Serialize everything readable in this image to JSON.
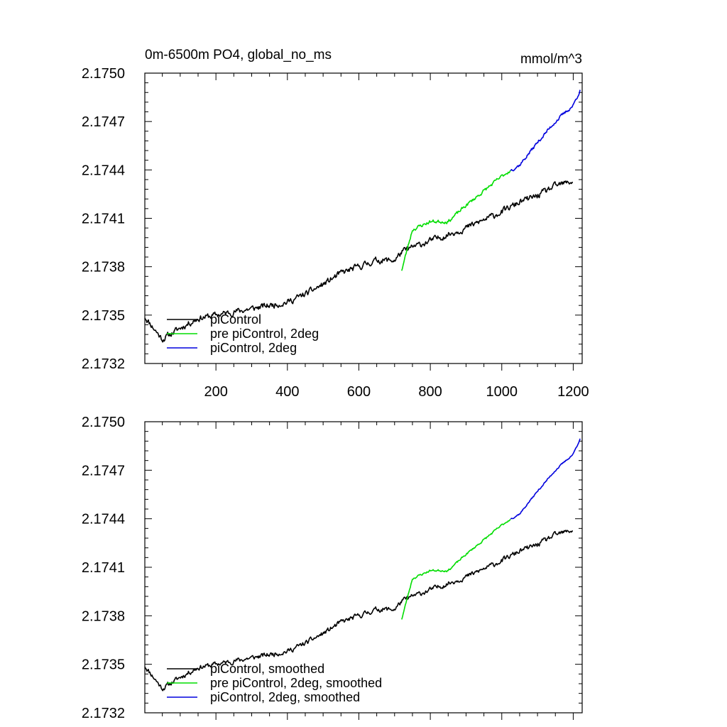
{
  "chart_data": [
    {
      "type": "line",
      "title": "0m-6500m PO4, global_no_ms",
      "units": "mmol/m^3",
      "xlim": [
        1,
        1225
      ],
      "ylim": [
        2.1732,
        2.175
      ],
      "yticks": [
        "2.1732",
        "2.1735",
        "2.1738",
        "2.1741",
        "2.1744",
        "2.1747",
        "2.1750"
      ],
      "xticks": [
        "200",
        "400",
        "600",
        "800",
        "1000",
        "1200"
      ],
      "show_xtick_labels": true,
      "legend": {
        "placement": "bottom-left"
      },
      "series": [
        {
          "name": "piControl",
          "color": "#000000",
          "x": [
            1,
            50,
            100,
            150,
            200,
            250,
            300,
            350,
            400,
            450,
            500,
            550,
            600,
            650,
            700,
            720,
            750,
            800,
            850,
            900,
            950,
            1000,
            1050,
            1100,
            1150,
            1200
          ],
          "y": [
            2.17349,
            2.17335,
            2.17342,
            2.17348,
            2.1735,
            2.17352,
            2.17354,
            2.17356,
            2.17358,
            2.17363,
            2.17369,
            2.17376,
            2.1738,
            2.17384,
            2.17384,
            2.17389,
            2.17392,
            2.17396,
            2.174,
            2.17404,
            2.17409,
            2.17414,
            2.1742,
            2.17424,
            2.1743,
            2.17433
          ],
          "noise": 3.5e-05,
          "seed": 11
        },
        {
          "name": "pre piControl, 2deg",
          "color": "#00dd00",
          "x": [
            720,
            750,
            800,
            850,
            900,
            950,
            1000,
            1025
          ],
          "y": [
            2.17378,
            2.17403,
            2.17408,
            2.17408,
            2.17418,
            2.17427,
            2.17436,
            2.1744
          ],
          "noise": 2e-05,
          "seed": 23
        },
        {
          "name": "piControl, 2deg",
          "color": "#0000dd",
          "x": [
            1025,
            1050,
            1100,
            1150,
            1200,
            1220
          ],
          "y": [
            2.1744,
            2.17443,
            2.17457,
            2.1747,
            2.1748,
            2.1749
          ],
          "noise": 2e-05,
          "seed": 37
        }
      ]
    },
    {
      "type": "line",
      "title": "",
      "units": "",
      "xlim": [
        1,
        1225
      ],
      "ylim": [
        2.1732,
        2.175
      ],
      "yticks": [
        "2.1732",
        "2.1735",
        "2.1738",
        "2.1741",
        "2.1744",
        "2.1747",
        "2.1750"
      ],
      "xticks": [
        "200",
        "400",
        "600",
        "800",
        "1000",
        "1200"
      ],
      "show_xtick_labels": false,
      "legend": {
        "placement": "bottom-left"
      },
      "series": [
        {
          "name": "piControl, smoothed",
          "color": "#000000",
          "x": [
            1,
            50,
            100,
            150,
            200,
            250,
            300,
            350,
            400,
            450,
            500,
            550,
            600,
            650,
            700,
            720,
            750,
            800,
            850,
            900,
            950,
            1000,
            1050,
            1100,
            1150,
            1200
          ],
          "y": [
            2.17349,
            2.17335,
            2.17342,
            2.17348,
            2.1735,
            2.17352,
            2.17354,
            2.17356,
            2.17358,
            2.17363,
            2.17369,
            2.17376,
            2.1738,
            2.17384,
            2.17384,
            2.17389,
            2.17392,
            2.17396,
            2.174,
            2.17404,
            2.17409,
            2.17414,
            2.1742,
            2.17424,
            2.1743,
            2.17433
          ],
          "noise": 2.8e-05,
          "seed": 11
        },
        {
          "name": "pre piControl, 2deg, smoothed",
          "color": "#00dd00",
          "x": [
            720,
            750,
            800,
            850,
            900,
            950,
            1000,
            1025
          ],
          "y": [
            2.17378,
            2.17403,
            2.17408,
            2.17408,
            2.17418,
            2.17427,
            2.17436,
            2.1744
          ],
          "noise": 1.2e-05,
          "seed": 23
        },
        {
          "name": "piControl, 2deg, smoothed",
          "color": "#0000dd",
          "x": [
            1025,
            1050,
            1100,
            1150,
            1200,
            1220
          ],
          "y": [
            2.1744,
            2.17443,
            2.17457,
            2.1747,
            2.1748,
            2.1749
          ],
          "noise": 1e-05,
          "seed": 37
        }
      ]
    }
  ]
}
